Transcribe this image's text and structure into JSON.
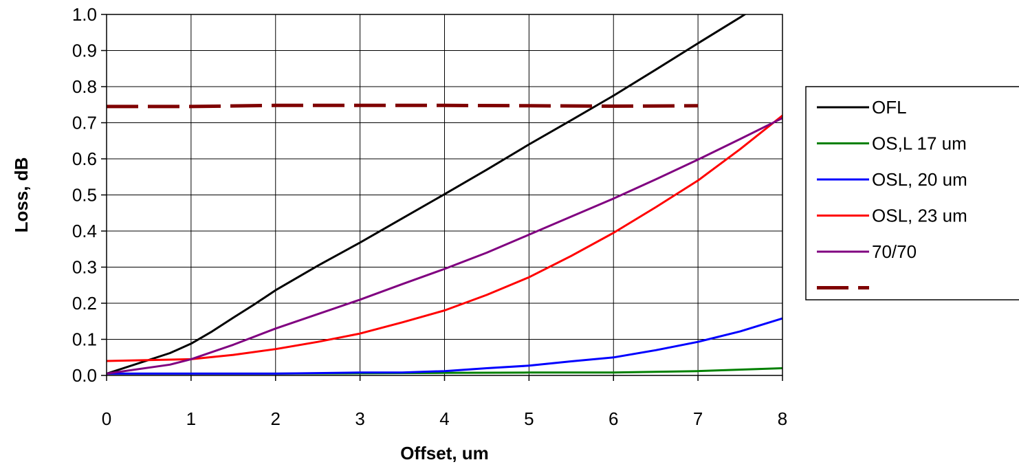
{
  "chart_data": {
    "type": "line",
    "title": "",
    "xlabel": "Offset, um",
    "ylabel": "Loss, dB",
    "xlim": [
      0,
      8
    ],
    "ylim": [
      0,
      1.0
    ],
    "x_ticks": [
      "0",
      "1",
      "2",
      "3",
      "4",
      "5",
      "6",
      "7",
      "8"
    ],
    "y_ticks": [
      "0.0",
      "0.1",
      "0.2",
      "0.3",
      "0.4",
      "0.5",
      "0.6",
      "0.7",
      "0.8",
      "0.9",
      "1.0"
    ],
    "grid": true,
    "legend_position": "right",
    "series": [
      {
        "name": "OFL",
        "color": "#000000",
        "style": "solid",
        "points": [
          [
            0,
            0.005
          ],
          [
            0.75,
            0.062
          ],
          [
            1,
            0.088
          ],
          [
            1.25,
            0.122
          ],
          [
            1.5,
            0.16
          ],
          [
            1.75,
            0.197
          ],
          [
            2,
            0.236
          ],
          [
            2.5,
            0.304
          ],
          [
            3,
            0.368
          ],
          [
            3.5,
            0.435
          ],
          [
            4,
            0.502
          ],
          [
            4.5,
            0.57
          ],
          [
            5,
            0.64
          ],
          [
            5.5,
            0.707
          ],
          [
            6,
            0.775
          ],
          [
            6.5,
            0.847
          ],
          [
            7,
            0.92
          ],
          [
            7.5,
            0.992
          ],
          [
            7.6,
            1.007
          ]
        ]
      },
      {
        "name": "OS,L 17 um",
        "color": "#008000",
        "style": "solid",
        "points": [
          [
            0,
            0.005
          ],
          [
            1,
            0.005
          ],
          [
            2,
            0.005
          ],
          [
            3,
            0.006
          ],
          [
            4,
            0.007
          ],
          [
            5,
            0.008
          ],
          [
            6,
            0.008
          ],
          [
            7,
            0.012
          ],
          [
            8,
            0.02
          ]
        ]
      },
      {
        "name": "OSL, 20 um",
        "color": "#0000FF",
        "style": "solid",
        "points": [
          [
            0,
            0.005
          ],
          [
            1,
            0.005
          ],
          [
            2,
            0.005
          ],
          [
            3,
            0.008
          ],
          [
            3.5,
            0.008
          ],
          [
            4,
            0.012
          ],
          [
            4.5,
            0.02
          ],
          [
            5,
            0.027
          ],
          [
            5.5,
            0.039
          ],
          [
            6,
            0.05
          ],
          [
            6.5,
            0.07
          ],
          [
            7,
            0.093
          ],
          [
            7.5,
            0.122
          ],
          [
            8,
            0.158
          ]
        ]
      },
      {
        "name": "OSL, 23 um",
        "color": "#FF0000",
        "style": "solid",
        "points": [
          [
            0,
            0.04
          ],
          [
            1,
            0.045
          ],
          [
            1.5,
            0.057
          ],
          [
            2,
            0.073
          ],
          [
            2.5,
            0.093
          ],
          [
            3,
            0.116
          ],
          [
            3.5,
            0.147
          ],
          [
            4,
            0.18
          ],
          [
            4.5,
            0.223
          ],
          [
            5,
            0.272
          ],
          [
            5.5,
            0.331
          ],
          [
            6,
            0.395
          ],
          [
            6.5,
            0.466
          ],
          [
            7,
            0.54
          ],
          [
            7.5,
            0.627
          ],
          [
            8,
            0.72
          ]
        ]
      },
      {
        "name": "70/70",
        "color": "#800080",
        "style": "solid",
        "points": [
          [
            0,
            0.005
          ],
          [
            0.75,
            0.03
          ],
          [
            1,
            0.045
          ],
          [
            1.5,
            0.085
          ],
          [
            2,
            0.13
          ],
          [
            2.5,
            0.17
          ],
          [
            3,
            0.21
          ],
          [
            3.5,
            0.253
          ],
          [
            4,
            0.295
          ],
          [
            4.5,
            0.34
          ],
          [
            5,
            0.39
          ],
          [
            5.5,
            0.44
          ],
          [
            6,
            0.49
          ],
          [
            6.5,
            0.543
          ],
          [
            7,
            0.598
          ],
          [
            7.5,
            0.655
          ],
          [
            8,
            0.713
          ]
        ]
      },
      {
        "name": "",
        "color": "#7F0000",
        "style": "dashed",
        "points": [
          [
            0,
            0.745
          ],
          [
            1,
            0.745
          ],
          [
            2,
            0.748
          ],
          [
            3,
            0.748
          ],
          [
            4,
            0.748
          ],
          [
            5,
            0.747
          ],
          [
            6,
            0.746
          ],
          [
            7,
            0.747
          ]
        ]
      }
    ]
  }
}
